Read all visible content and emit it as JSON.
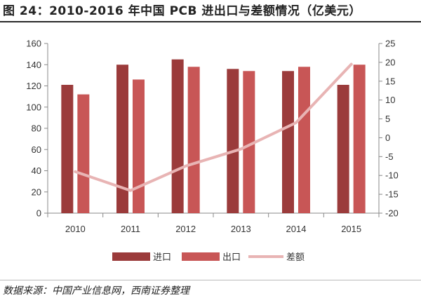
{
  "header": {
    "title": "图 24：2010-2016 年中国 PCB 进出口与差额情况（亿美元）"
  },
  "footer": {
    "source": "数据来源：中国产业信息网，西南证券整理"
  },
  "chart_data": {
    "type": "bar",
    "categories": [
      "2010",
      "2011",
      "2012",
      "2013",
      "2014",
      "2015"
    ],
    "series": [
      {
        "name": "进口",
        "type": "bar",
        "axis": "left",
        "color": "#9b3b3b",
        "values": [
          121,
          140,
          145,
          136,
          134,
          121
        ]
      },
      {
        "name": "出口",
        "type": "bar",
        "axis": "left",
        "color": "#c85656",
        "values": [
          112,
          126,
          138,
          134,
          138,
          140
        ]
      },
      {
        "name": "差额",
        "type": "line",
        "axis": "right",
        "color": "#e8b4b4",
        "values": [
          -9,
          -14,
          -7.5,
          -3,
          4,
          19.5
        ]
      }
    ],
    "y_left": {
      "min": 0,
      "max": 160,
      "ticks": [
        0,
        20,
        40,
        60,
        80,
        100,
        120,
        140,
        160
      ]
    },
    "y_right": {
      "min": -20,
      "max": 25,
      "ticks": [
        -20,
        -15,
        -10,
        -5,
        0,
        5,
        10,
        15,
        20,
        25
      ]
    },
    "legend_position": "bottom",
    "grid": false
  }
}
